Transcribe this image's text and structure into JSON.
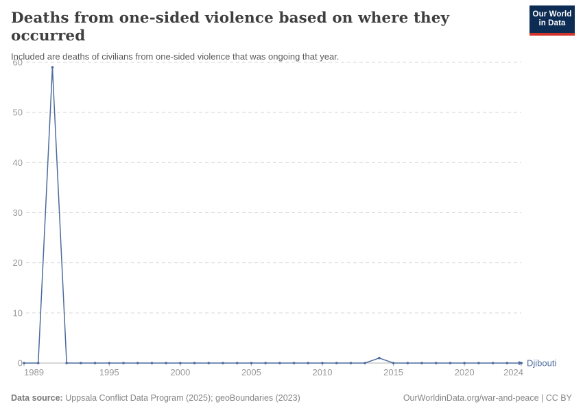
{
  "header": {
    "title": "Deaths from one-sided violence based on where they occurred",
    "subtitle": "Included are deaths of civilians from one-sided violence that was ongoing that year."
  },
  "logo": {
    "line1": "Our World",
    "line2": "in Data",
    "bg_color": "#0d2c54",
    "accent_color": "#d0342c"
  },
  "chart_data": {
    "type": "line",
    "title": "Deaths from one-sided violence based on where they occurred",
    "xlabel": "",
    "ylabel": "",
    "x": [
      1989,
      1990,
      1991,
      1992,
      1993,
      1994,
      1995,
      1996,
      1997,
      1998,
      1999,
      2000,
      2001,
      2002,
      2003,
      2004,
      2005,
      2006,
      2007,
      2008,
      2009,
      2010,
      2011,
      2012,
      2013,
      2014,
      2015,
      2016,
      2017,
      2018,
      2019,
      2020,
      2021,
      2022,
      2023,
      2024
    ],
    "series": [
      {
        "name": "Djibouti",
        "color": "#4c6a9c",
        "values": [
          0,
          0,
          59,
          0,
          0,
          0,
          0,
          0,
          0,
          0,
          0,
          0,
          0,
          0,
          0,
          0,
          0,
          0,
          0,
          0,
          0,
          0,
          0,
          0,
          0,
          1,
          0,
          0,
          0,
          0,
          0,
          0,
          0,
          0,
          0,
          0
        ]
      }
    ],
    "ylim": [
      0,
      60
    ],
    "yticks": [
      0,
      10,
      20,
      30,
      40,
      50,
      60
    ],
    "xticks": [
      1989,
      1995,
      2000,
      2005,
      2010,
      2015,
      2020,
      2024
    ],
    "grid": true,
    "gridline_color": "#d7d7d7",
    "axis_color": "#afafaf",
    "tick_label_color": "#989898",
    "legend": "end-of-line-label",
    "end_label": "Djibouti"
  },
  "footer": {
    "source_label": "Data source:",
    "source_text": " Uppsala Conflict Data Program (2025); geoBoundaries (2023)",
    "link_text": "OurWorldinData.org/war-and-peace | CC BY"
  }
}
